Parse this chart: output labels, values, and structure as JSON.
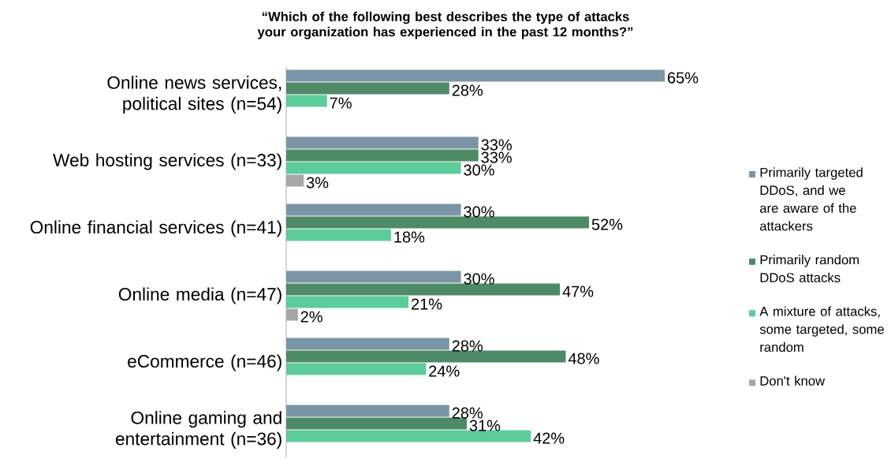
{
  "chart_data": {
    "type": "bar",
    "orientation": "horizontal",
    "title": "“Which of the following best describes the type of attacks your organization has experienced in the past 12 months?”",
    "categories": [
      "Online news services, political sites (n=54)",
      "Web hosting services (n=33)",
      "Online financial services (n=41)",
      "Online media (n=47)",
      "eCommerce (n=46)",
      "Online gaming and entertainment (n=36)"
    ],
    "series": [
      {
        "name": "Primarily targeted DDoS, and we are aware of the attackers",
        "color": "#7b95a6",
        "values": [
          65,
          33,
          30,
          30,
          28,
          28
        ],
        "value_labels": [
          "65%",
          "33%",
          "30%",
          "30%",
          "28%",
          "28%"
        ]
      },
      {
        "name": "Primarily random DDoS attacks",
        "color": "#4e8a66",
        "values": [
          28,
          33,
          52,
          47,
          48,
          31
        ],
        "value_labels": [
          "28%",
          "33%",
          "52%",
          "47%",
          "48%",
          "31%"
        ]
      },
      {
        "name": "A mixture of attacks, some targeted, some random",
        "color": "#5ccc9a",
        "values": [
          7,
          30,
          18,
          21,
          24,
          42
        ],
        "value_labels": [
          "7%",
          "30%",
          "18%",
          "21%",
          "24%",
          "42%"
        ]
      },
      {
        "name": "Don't know",
        "color": "#a6a6a6",
        "values": [
          null,
          3,
          null,
          2,
          null,
          null
        ],
        "value_labels": [
          null,
          "3%",
          null,
          "2%",
          null,
          null
        ]
      }
    ],
    "tick_labels": "y",
    "legend": "right"
  }
}
